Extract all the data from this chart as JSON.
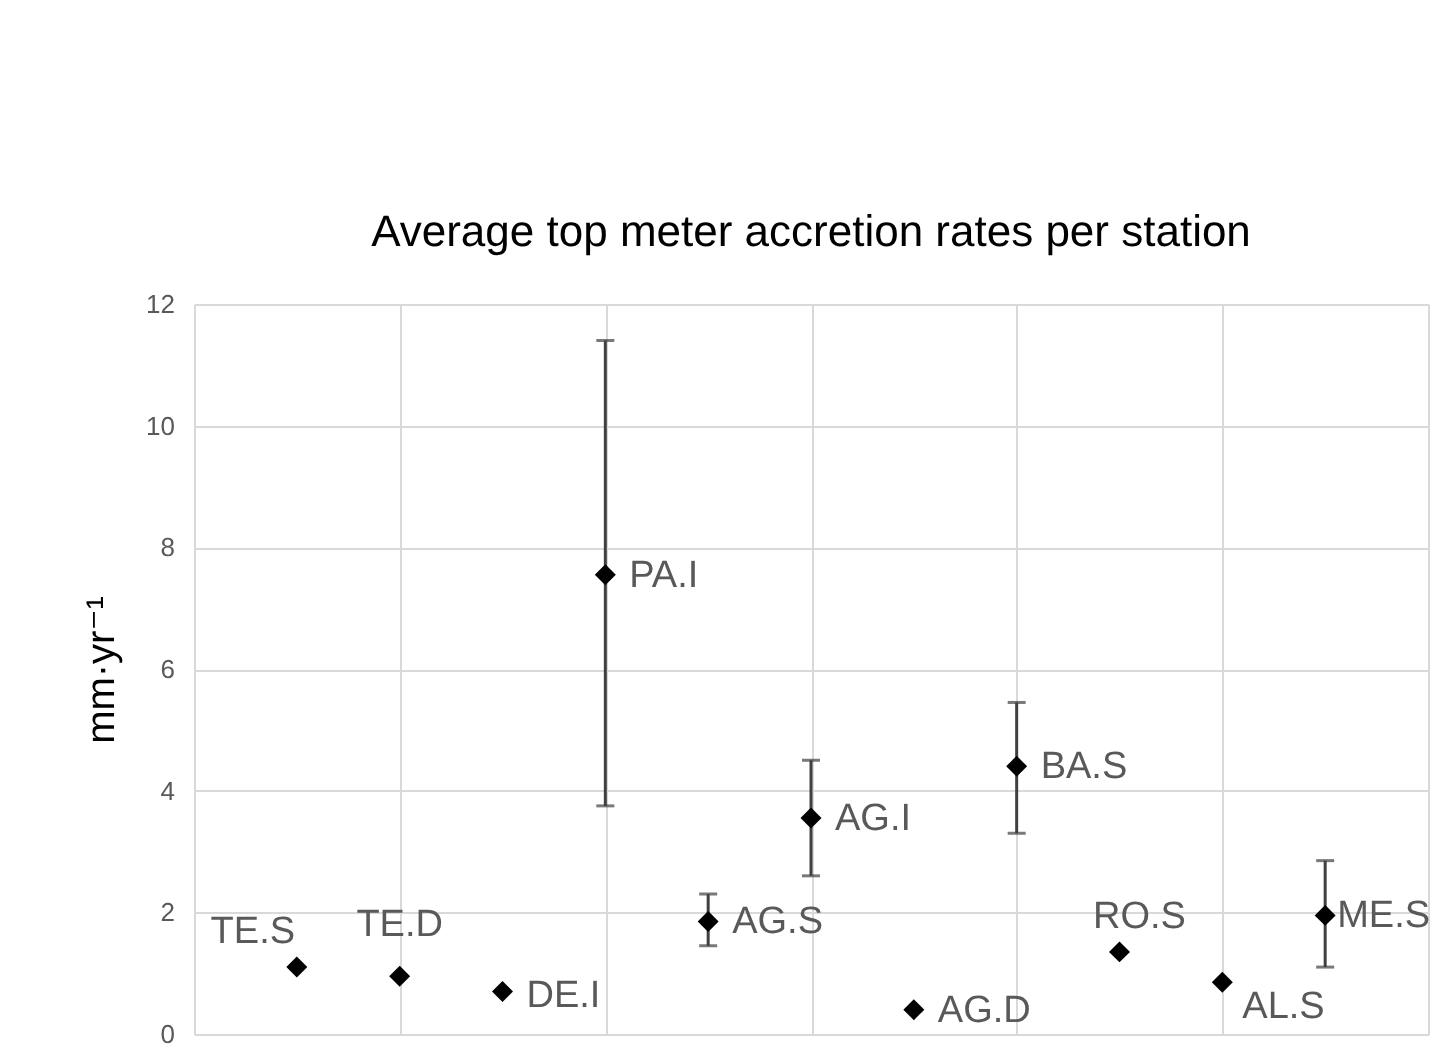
{
  "chart_data": {
    "type": "scatter",
    "title": "Average top meter accretion rates per station",
    "ylabel": "mm·yr⁻¹",
    "categories": [
      null,
      null,
      null,
      null,
      null,
      null,
      null,
      null,
      null,
      null,
      null
    ],
    "series": [
      {
        "color": "#000000",
        "values": [
          1.1,
          0.95,
          0.7,
          7.55,
          1.85,
          3.55,
          0.4,
          4.4,
          1.35,
          0.85,
          1.95
        ],
        "errors": [
          null,
          null,
          null,
          [
            3.75,
            11.4
          ],
          [
            1.45,
            2.3
          ],
          [
            2.6,
            4.5
          ],
          null,
          [
            3.3,
            5.45
          ],
          null,
          null,
          [
            1.1,
            2.85
          ]
        ]
      }
    ],
    "annotations": [
      "TE.S",
      "TE.D",
      "DE.I",
      "PA.I",
      "AG.S",
      "AG.I",
      "AG.D",
      "BA.S",
      "RO.S",
      "AL.S",
      "ME.S"
    ],
    "ylim": [
      0,
      12
    ],
    "yticks": [
      0,
      2,
      4,
      6,
      8,
      10,
      12
    ],
    "grid": true,
    "marker": "diamond",
    "tick_labels": "y"
  }
}
